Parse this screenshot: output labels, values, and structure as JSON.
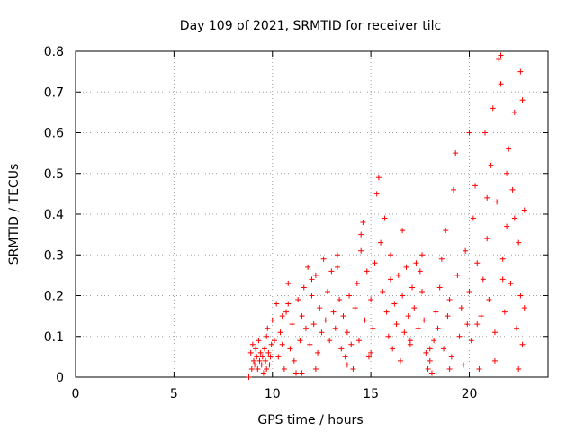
{
  "chart_data": {
    "type": "scatter",
    "title": "Day 109 of 2021, SRMTID for receiver tilc",
    "xlabel": "GPS time / hours",
    "ylabel": "SRMTID / TECUs",
    "xlim": [
      0,
      24
    ],
    "ylim": [
      0,
      0.8
    ],
    "xticks": [
      0,
      5,
      10,
      15,
      20
    ],
    "xtick_labels": [
      "0",
      "5",
      "10",
      "15",
      "20"
    ],
    "yticks": [
      0,
      0.1,
      0.2,
      0.3,
      0.4,
      0.5,
      0.6,
      0.7,
      0.8
    ],
    "ytick_labels": [
      "0",
      "0.1",
      "0.2",
      "0.3",
      "0.4",
      "0.5",
      "0.6",
      "0.7",
      "0.8"
    ],
    "grid": true,
    "marker": "+",
    "series": [
      {
        "name": "SRMTID",
        "color": "#ff0000",
        "points": [
          [
            8.8,
            0.0
          ],
          [
            8.9,
            0.06
          ],
          [
            8.95,
            0.02
          ],
          [
            9.0,
            0.08
          ],
          [
            9.05,
            0.04
          ],
          [
            9.1,
            0.03
          ],
          [
            9.15,
            0.07
          ],
          [
            9.2,
            0.05
          ],
          [
            9.25,
            0.02
          ],
          [
            9.3,
            0.09
          ],
          [
            9.35,
            0.04
          ],
          [
            9.4,
            0.06
          ],
          [
            9.45,
            0.03
          ],
          [
            9.5,
            0.05
          ],
          [
            9.55,
            0.01
          ],
          [
            9.6,
            0.07
          ],
          [
            9.65,
            0.04
          ],
          [
            9.7,
            0.02
          ],
          [
            9.75,
            0.12
          ],
          [
            9.8,
            0.06
          ],
          [
            9.85,
            0.03
          ],
          [
            9.9,
            0.05
          ],
          [
            9.95,
            0.08
          ],
          [
            10.0,
            0.14
          ],
          [
            10.1,
            0.09
          ],
          [
            10.2,
            0.18
          ],
          [
            10.3,
            0.05
          ],
          [
            10.4,
            0.11
          ],
          [
            10.5,
            0.08
          ],
          [
            10.6,
            0.02
          ],
          [
            10.7,
            0.16
          ],
          [
            10.8,
            0.23
          ],
          [
            10.9,
            0.07
          ],
          [
            11.0,
            0.13
          ],
          [
            11.1,
            0.04
          ],
          [
            11.2,
            0.01
          ],
          [
            11.3,
            0.19
          ],
          [
            11.4,
            0.09
          ],
          [
            11.5,
            0.15
          ],
          [
            11.6,
            0.22
          ],
          [
            11.7,
            0.12
          ],
          [
            11.8,
            0.27
          ],
          [
            11.9,
            0.08
          ],
          [
            12.0,
            0.2
          ],
          [
            12.1,
            0.13
          ],
          [
            12.2,
            0.25
          ],
          [
            12.3,
            0.06
          ],
          [
            12.4,
            0.17
          ],
          [
            12.5,
            0.11
          ],
          [
            12.6,
            0.29
          ],
          [
            12.7,
            0.14
          ],
          [
            12.8,
            0.21
          ],
          [
            12.9,
            0.09
          ],
          [
            13.0,
            0.26
          ],
          [
            13.1,
            0.16
          ],
          [
            13.2,
            0.12
          ],
          [
            13.3,
            0.3
          ],
          [
            13.4,
            0.19
          ],
          [
            13.5,
            0.07
          ],
          [
            13.6,
            0.15
          ],
          [
            13.7,
            0.05
          ],
          [
            13.8,
            0.11
          ],
          [
            13.9,
            0.2
          ],
          [
            14.0,
            0.08
          ],
          [
            14.1,
            0.02
          ],
          [
            14.2,
            0.17
          ],
          [
            14.3,
            0.23
          ],
          [
            14.4,
            0.09
          ],
          [
            14.5,
            0.31
          ],
          [
            14.6,
            0.38
          ],
          [
            14.7,
            0.14
          ],
          [
            14.8,
            0.26
          ],
          [
            14.9,
            0.05
          ],
          [
            15.0,
            0.19
          ],
          [
            15.1,
            0.12
          ],
          [
            15.2,
            0.28
          ],
          [
            15.3,
            0.45
          ],
          [
            15.4,
            0.49
          ],
          [
            15.5,
            0.33
          ],
          [
            15.6,
            0.21
          ],
          [
            15.7,
            0.39
          ],
          [
            15.8,
            0.16
          ],
          [
            15.9,
            0.1
          ],
          [
            16.0,
            0.24
          ],
          [
            16.1,
            0.07
          ],
          [
            16.2,
            0.18
          ],
          [
            16.3,
            0.13
          ],
          [
            16.4,
            0.25
          ],
          [
            16.5,
            0.04
          ],
          [
            16.6,
            0.2
          ],
          [
            16.7,
            0.11
          ],
          [
            16.8,
            0.27
          ],
          [
            16.9,
            0.15
          ],
          [
            17.0,
            0.08
          ],
          [
            17.1,
            0.22
          ],
          [
            17.2,
            0.17
          ],
          [
            17.3,
            0.28
          ],
          [
            17.4,
            0.12
          ],
          [
            17.5,
            0.26
          ],
          [
            17.6,
            0.21
          ],
          [
            17.7,
            0.14
          ],
          [
            17.8,
            0.06
          ],
          [
            17.9,
            0.02
          ],
          [
            18.0,
            0.04
          ],
          [
            18.1,
            0.01
          ],
          [
            18.2,
            0.09
          ],
          [
            18.3,
            0.16
          ],
          [
            18.4,
            0.12
          ],
          [
            18.5,
            0.22
          ],
          [
            18.6,
            0.29
          ],
          [
            18.7,
            0.07
          ],
          [
            18.8,
            0.36
          ],
          [
            18.9,
            0.15
          ],
          [
            19.0,
            0.19
          ],
          [
            19.1,
            0.05
          ],
          [
            19.2,
            0.46
          ],
          [
            19.3,
            0.55
          ],
          [
            19.4,
            0.25
          ],
          [
            19.5,
            0.1
          ],
          [
            19.6,
            0.17
          ],
          [
            19.7,
            0.03
          ],
          [
            19.8,
            0.31
          ],
          [
            19.9,
            0.13
          ],
          [
            20.0,
            0.21
          ],
          [
            20.1,
            0.09
          ],
          [
            20.2,
            0.39
          ],
          [
            20.3,
            0.47
          ],
          [
            20.4,
            0.28
          ],
          [
            20.5,
            0.02
          ],
          [
            20.6,
            0.15
          ],
          [
            20.7,
            0.24
          ],
          [
            20.8,
            0.6
          ],
          [
            20.9,
            0.34
          ],
          [
            21.0,
            0.19
          ],
          [
            21.1,
            0.52
          ],
          [
            21.2,
            0.66
          ],
          [
            21.3,
            0.11
          ],
          [
            21.4,
            0.43
          ],
          [
            21.5,
            0.78
          ],
          [
            21.6,
            0.72
          ],
          [
            21.7,
            0.29
          ],
          [
            21.8,
            0.16
          ],
          [
            21.9,
            0.37
          ],
          [
            22.0,
            0.56
          ],
          [
            22.1,
            0.23
          ],
          [
            22.2,
            0.46
          ],
          [
            22.3,
            0.65
          ],
          [
            22.4,
            0.12
          ],
          [
            22.5,
            0.33
          ],
          [
            22.6,
            0.2
          ],
          [
            22.7,
            0.08
          ],
          [
            22.8,
            0.41
          ],
          [
            21.6,
            0.79
          ],
          [
            22.6,
            0.75
          ],
          [
            22.7,
            0.68
          ],
          [
            21.3,
            0.04
          ],
          [
            20.0,
            0.6
          ],
          [
            19.0,
            0.02
          ],
          [
            17.6,
            0.3
          ],
          [
            16.0,
            0.3
          ],
          [
            14.5,
            0.35
          ],
          [
            13.3,
            0.27
          ],
          [
            12.0,
            0.24
          ],
          [
            10.8,
            0.18
          ],
          [
            10.5,
            0.15
          ],
          [
            9.7,
            0.1
          ],
          [
            11.5,
            0.01
          ],
          [
            12.2,
            0.02
          ],
          [
            13.8,
            0.03
          ],
          [
            15.0,
            0.06
          ],
          [
            16.6,
            0.36
          ],
          [
            17.0,
            0.09
          ],
          [
            18.0,
            0.07
          ],
          [
            20.9,
            0.44
          ],
          [
            21.9,
            0.5
          ],
          [
            22.3,
            0.39
          ],
          [
            22.8,
            0.17
          ],
          [
            22.5,
            0.02
          ],
          [
            21.7,
            0.24
          ],
          [
            20.4,
            0.13
          ]
        ]
      }
    ]
  }
}
